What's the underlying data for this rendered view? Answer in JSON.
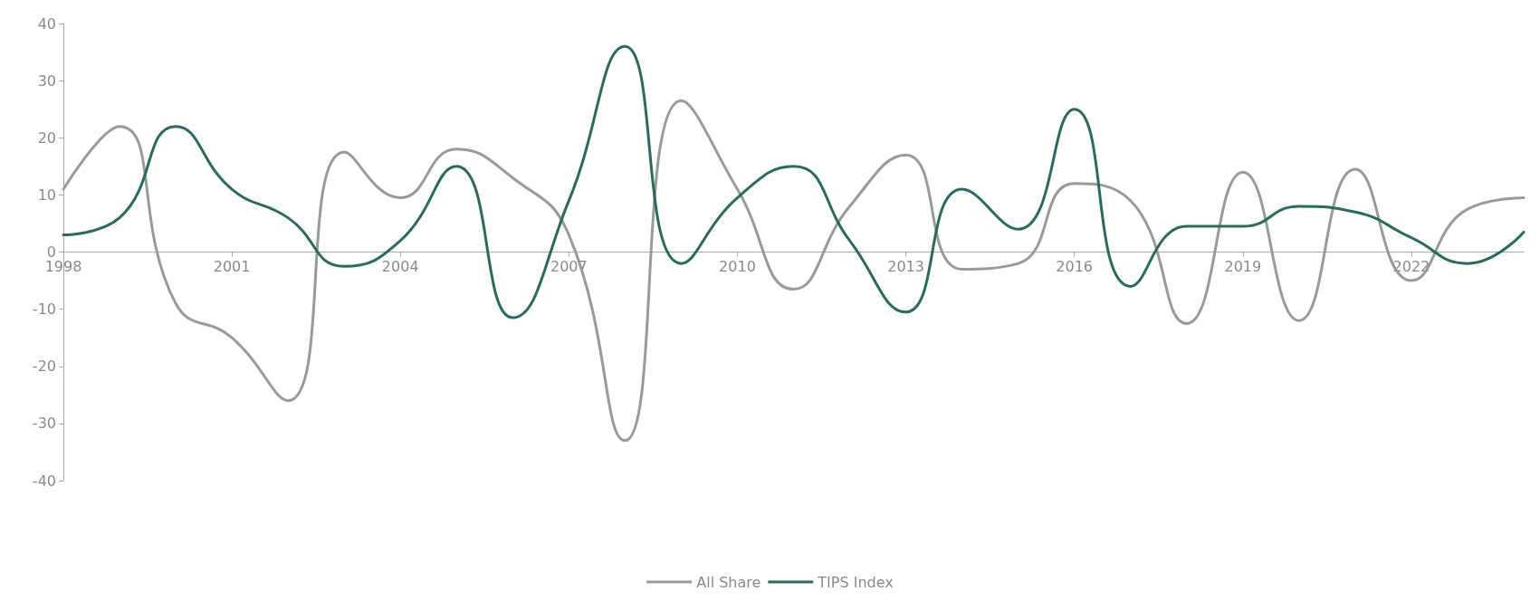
{
  "chart_data": {
    "type": "line",
    "x": [
      1998,
      1999,
      2000,
      2001,
      2002,
      2003,
      2004,
      2005,
      2006,
      2007,
      2008,
      2009,
      2010,
      2011,
      2012,
      2013,
      2014,
      2015,
      2016,
      2017,
      2018,
      2019,
      2020,
      2021,
      2022,
      2023,
      2024
    ],
    "series": [
      {
        "name": "All Share",
        "color": "#959d99",
        "values": [
          11,
          22,
          -9,
          -15,
          -26,
          17.5,
          9.5,
          18,
          13,
          3,
          -33,
          26.5,
          11,
          -6.5,
          8,
          17,
          -3,
          -2,
          12,
          9,
          -12.5,
          14,
          -12,
          14.5,
          -5,
          7.5,
          9.5
        ]
      },
      {
        "name": "TIPS Index",
        "color": "#2a6b5f",
        "values": [
          3,
          6,
          22,
          11,
          6,
          -2.5,
          2,
          15,
          -11.5,
          9,
          36,
          -2,
          9.5,
          15,
          2,
          -10.5,
          11,
          4,
          25,
          -6,
          4.5,
          4.5,
          8,
          7,
          2.5,
          -2,
          3.5
        ]
      }
    ],
    "xlim": [
      1998,
      2024
    ],
    "xticks": [
      1998,
      2001,
      2004,
      2007,
      2010,
      2013,
      2016,
      2019,
      2022
    ],
    "ylim": [
      -40,
      40
    ],
    "yticks": [
      -40,
      -30,
      -20,
      -10,
      0,
      10,
      20,
      30,
      40
    ],
    "grid": false,
    "legend": "bottom",
    "marker": "none",
    "line_style": "solid"
  }
}
